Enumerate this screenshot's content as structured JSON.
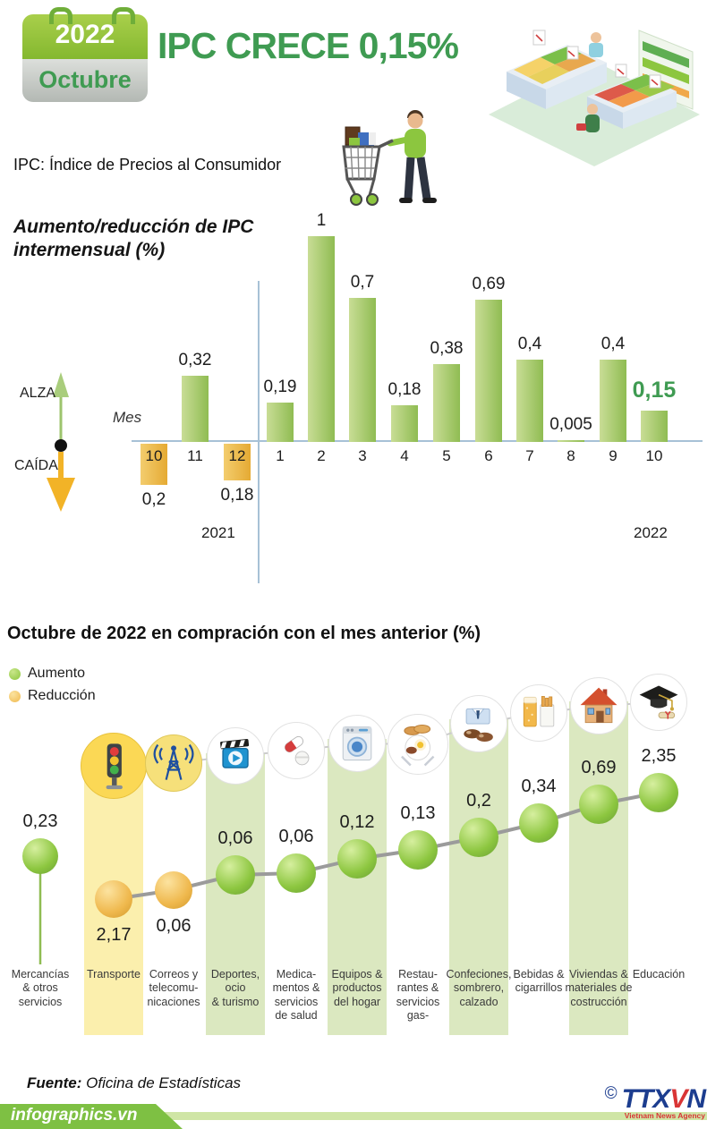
{
  "header": {
    "calendar_year": "2022",
    "calendar_month": "Octubre",
    "title": "IPC CRECE 0,15%",
    "subtitle": "IPC: Índice de Precios al Consumidor"
  },
  "bar_chart": {
    "title_line1": "Aumento/reducción de IPC",
    "title_line2": "intermensual (%)",
    "axis_label": "Mes",
    "up_label": "ALZA",
    "down_label": "CAÍDA",
    "year_left": "2021",
    "year_right": "2022",
    "bars": [
      {
        "month": "10",
        "label": "0,2",
        "value": 0.2,
        "dir": "down"
      },
      {
        "month": "11",
        "label": "0,32",
        "value": 0.32,
        "dir": "up"
      },
      {
        "month": "12",
        "label": "0,18",
        "value": 0.18,
        "dir": "down"
      },
      {
        "month": "1",
        "label": "0,19",
        "value": 0.19,
        "dir": "up"
      },
      {
        "month": "2",
        "label": "1",
        "value": 1,
        "dir": "up"
      },
      {
        "month": "3",
        "label": "0,7",
        "value": 0.7,
        "dir": "up"
      },
      {
        "month": "4",
        "label": "0,18",
        "value": 0.18,
        "dir": "up"
      },
      {
        "month": "5",
        "label": "0,38",
        "value": 0.38,
        "dir": "up"
      },
      {
        "month": "6",
        "label": "0,69",
        "value": 0.69,
        "dir": "up"
      },
      {
        "month": "7",
        "label": "0,4",
        "value": 0.4,
        "dir": "up"
      },
      {
        "month": "8",
        "label": "0,005",
        "value": 0.005,
        "dir": "up"
      },
      {
        "month": "9",
        "label": "0,4",
        "value": 0.4,
        "dir": "up"
      },
      {
        "month": "10",
        "label": "0,15",
        "value": 0.15,
        "dir": "up",
        "highlight": true
      }
    ]
  },
  "comparison": {
    "heading": "Octubre de 2022 en compración con el mes anterior (%)",
    "legend": [
      {
        "label": "Aumento",
        "color": "#8cc63f"
      },
      {
        "label": "Reducción",
        "color": "#f0b94e"
      }
    ],
    "categories": [
      {
        "key": "mercancias",
        "label_lines": [
          "Mercancías",
          "& otros",
          "servicios"
        ],
        "value_label": "0,23",
        "dir": "up",
        "icon": null,
        "band": null
      },
      {
        "key": "transporte",
        "label_lines": [
          "Transporte"
        ],
        "value_label": "2,17",
        "dir": "down",
        "icon": "traffic-light",
        "band": "yellow"
      },
      {
        "key": "correos",
        "label_lines": [
          "Correos y",
          "telecomu-",
          "nicaciones"
        ],
        "value_label": "0,06",
        "dir": "down",
        "icon": "antenna",
        "band": null
      },
      {
        "key": "deportes",
        "label_lines": [
          "Deportes,",
          "ocio",
          "& turismo"
        ],
        "value_label": "0,06",
        "dir": "up",
        "icon": "cinema",
        "band": "green"
      },
      {
        "key": "medicamentos",
        "label_lines": [
          "Medica-",
          "mentos &",
          "servicios",
          "de salud"
        ],
        "value_label": "0,06",
        "dir": "up",
        "icon": "medicine",
        "band": null
      },
      {
        "key": "equipos",
        "label_lines": [
          "Equipos &",
          "productos",
          "del hogar"
        ],
        "value_label": "0,12",
        "dir": "up",
        "icon": "washing-machine",
        "band": "green"
      },
      {
        "key": "restaurantes",
        "label_lines": [
          "Restau-",
          "rantes &",
          "servicios",
          "gas-"
        ],
        "value_label": "0,13",
        "dir": "up",
        "icon": "food",
        "band": null
      },
      {
        "key": "confecciones",
        "label_lines": [
          "Confeciones,",
          "sombrero,",
          "calzado"
        ],
        "value_label": "0,2",
        "dir": "up",
        "icon": "clothing",
        "band": "green"
      },
      {
        "key": "bebidas",
        "label_lines": [
          "Bebidas &",
          "cigarrillos"
        ],
        "value_label": "0,34",
        "dir": "up",
        "icon": "drinks-cigarettes",
        "band": null
      },
      {
        "key": "viviendas",
        "label_lines": [
          "Viviendas &",
          "materiales de",
          "costrucción"
        ],
        "value_label": "0,69",
        "dir": "up",
        "icon": "house",
        "band": "green"
      },
      {
        "key": "educacion",
        "label_lines": [
          "Educación"
        ],
        "value_label": "2,35",
        "dir": "up",
        "icon": "education",
        "band": null
      }
    ]
  },
  "footer": {
    "source_label": "Fuente:",
    "source_value": "Oficina de Estadísticas",
    "brand": "infographics.vn",
    "copyright": "©",
    "agency_t1": "TTX",
    "agency_t2": "V",
    "agency_t3": "N",
    "agency_tagline": "Vietnam News Agency"
  },
  "colors": {
    "accent_green": "#3f9b52",
    "bar_positive": "#8fbc52",
    "bar_negative": "#e5aa33",
    "axis_blue": "#a7c1d6",
    "band_green": "#dbe8c0",
    "band_yellow": "#fbefad",
    "ball_green": "#8cc63f",
    "ball_yellow": "#f0b94e"
  },
  "chart_data": [
    {
      "type": "bar",
      "title": "Aumento/reducción de IPC intermensual (%)",
      "xlabel": "Mes",
      "categories": [
        "10/2021",
        "11/2021",
        "12/2021",
        "1/2022",
        "2/2022",
        "3/2022",
        "4/2022",
        "5/2022",
        "6/2022",
        "7/2022",
        "8/2022",
        "9/2022",
        "10/2022"
      ],
      "values": [
        -0.2,
        0.32,
        -0.18,
        0.19,
        1,
        0.7,
        0.18,
        0.38,
        0.69,
        0.4,
        0.005,
        0.4,
        0.15
      ],
      "positive_color": "#8fbc52",
      "negative_color": "#e5aa33",
      "highlight_index": 12,
      "ylim": [
        -0.3,
        1.1
      ],
      "grid": false
    },
    {
      "type": "line",
      "title": "Octubre de 2022 en compración con el mes anterior (%)",
      "categories": [
        "Mercancías & otros servicios",
        "Transporte",
        "Correos y telecomunicaciones",
        "Deportes, ocio & turismo",
        "Medicamentos & servicios de salud",
        "Equipos & productos del hogar",
        "Restaurantes & servicios gas-",
        "Confeciones, sombrero, calzado",
        "Bebidas & cigarrillos",
        "Viviendas & materiales de costrucción",
        "Educación"
      ],
      "values": [
        0.23,
        -2.17,
        -0.06,
        0.06,
        0.06,
        0.12,
        0.13,
        0.2,
        0.34,
        0.69,
        2.35
      ],
      "directions": [
        "aumento",
        "reducción",
        "reducción",
        "aumento",
        "aumento",
        "aumento",
        "aumento",
        "aumento",
        "aumento",
        "aumento",
        "aumento"
      ],
      "legend": [
        "Aumento",
        "Reducción"
      ],
      "legend_position": "top-left"
    }
  ]
}
